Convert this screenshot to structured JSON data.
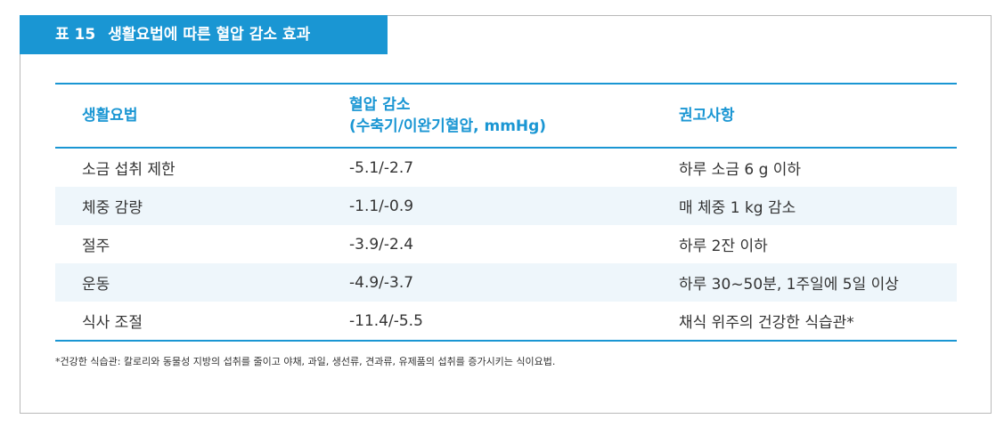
{
  "title": {
    "number": "표 15",
    "text": "생활요법에 따른 혈압 감소 효과"
  },
  "table": {
    "headers": [
      "생활요법",
      "혈압 감소",
      "(수축기/이완기혈압, mmHg)",
      "권고사항"
    ],
    "rows": [
      [
        "소금 섭취 제한",
        "-5.1/-2.7",
        "하루 소금 6 g 이하"
      ],
      [
        "체중 감량",
        "-1.1/-0.9",
        "매 체중 1 kg 감소"
      ],
      [
        "절주",
        "-3.9/-2.4",
        "하루 2잔 이하"
      ],
      [
        "운동",
        "-4.9/-3.7",
        "하루 30~50분, 1주일에 5일 이상"
      ],
      [
        "식사 조절",
        "-11.4/-5.5",
        "채식 위주의 건강한 식습관*"
      ]
    ]
  },
  "footnote": "*건강한 식습관: 칼로리와 동물성 지방의 섭취를 줄이고 야채, 과일, 생선류, 견과류, 유제품의 섭취를 증가시키는 식이요법.",
  "colors": {
    "accent": "#1a96d3",
    "shade": "#eef6fb"
  }
}
